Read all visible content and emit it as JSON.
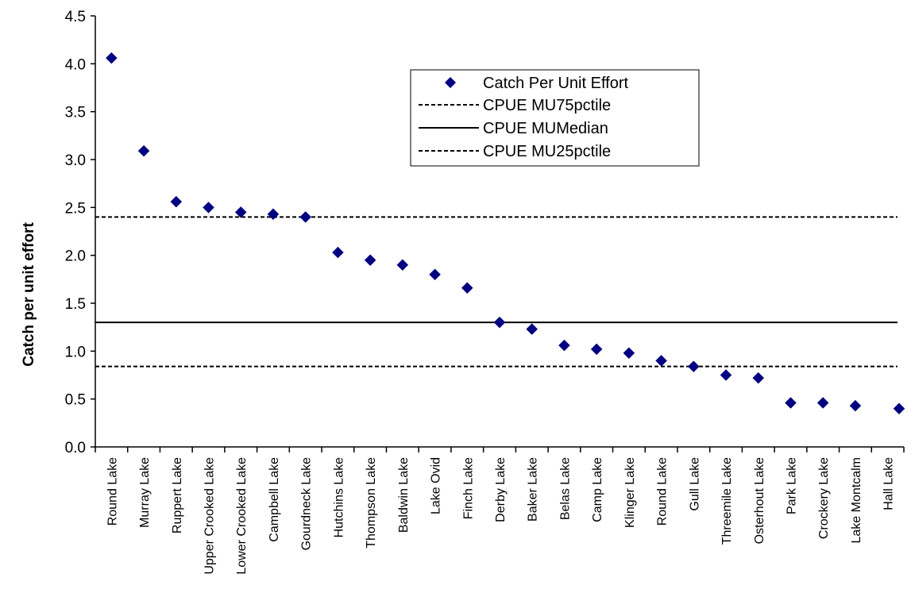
{
  "chart_data": {
    "type": "scatter",
    "title": "",
    "xlabel": "",
    "ylabel": "Catch per unit effort",
    "ylim": [
      0,
      4.5
    ],
    "yticks": [
      "0.0",
      "0.5",
      "1.0",
      "1.5",
      "2.0",
      "2.5",
      "3.0",
      "3.5",
      "4.0",
      "4.5"
    ],
    "grid": false,
    "legend_position": "top-right",
    "categories": [
      "Round Lake",
      "Murray Lake",
      "Ruppert Lake",
      "Upper Crooked Lake",
      "Lower Crooked Lake",
      "Campbell Lake",
      "Gourdneck Lake",
      "Hutchins Lake",
      "Thompson Lake",
      "Baldwin Lake",
      "Lake Ovid",
      "Finch Lake",
      "Derby Lake",
      "Baker Lake",
      "Belas Lake",
      "Camp Lake",
      "Klinger Lake",
      "Round Lake",
      "Gull Lake",
      "Threemile Lake",
      "Osterhout Lake",
      "Park Lake",
      "Crockery Lake",
      "Lake Montcalm",
      "Hall Lake"
    ],
    "series": [
      {
        "name": "Catch Per Unit Effort",
        "marker": "diamond",
        "color": "#000080",
        "values": [
          4.06,
          3.09,
          2.56,
          2.5,
          2.45,
          2.43,
          2.4,
          2.03,
          1.95,
          1.9,
          1.8,
          1.66,
          1.3,
          1.23,
          1.06,
          1.02,
          0.98,
          0.9,
          0.84,
          0.75,
          0.72,
          0.46,
          0.46,
          0.43,
          0.4
        ]
      }
    ],
    "reference_lines": [
      {
        "name": "CPUE MU75pctile",
        "value": 2.4,
        "style": "dashed",
        "color": "#000000"
      },
      {
        "name": "CPUE MUMedian",
        "value": 1.3,
        "style": "solid",
        "color": "#000000"
      },
      {
        "name": "CPUE MU25pctile",
        "value": 0.84,
        "style": "dashed",
        "color": "#000000"
      }
    ]
  }
}
